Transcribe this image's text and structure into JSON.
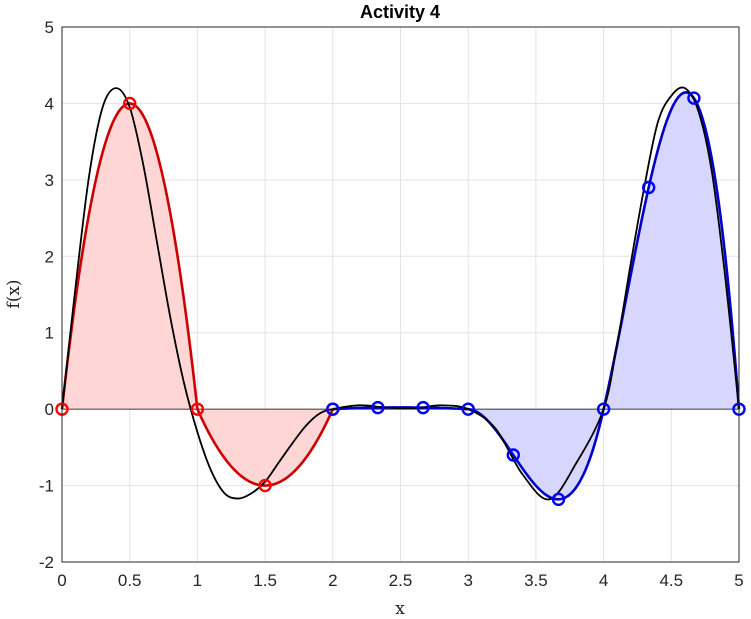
{
  "chart_data": {
    "type": "line",
    "title": "Activity 4",
    "xlabel": "x",
    "ylabel": "f(x)",
    "xlim": [
      0,
      5
    ],
    "ylim": [
      -2,
      5
    ],
    "xticks": [
      0,
      0.5,
      1,
      1.5,
      2,
      2.5,
      3,
      3.5,
      4,
      4.5,
      5
    ],
    "xtick_labels": [
      "0",
      "0.5",
      "1",
      "1.5",
      "2",
      "2.5",
      "3",
      "3.5",
      "4",
      "4.5",
      "5"
    ],
    "yticks": [
      -2,
      -1,
      0,
      1,
      2,
      3,
      4,
      5
    ],
    "ytick_labels": [
      "-2",
      "-1",
      "0",
      "1",
      "2",
      "3",
      "4",
      "5"
    ],
    "grid": true,
    "legend": "none",
    "true_function": {
      "color": "#000000",
      "x": [
        0,
        0.1,
        0.2,
        0.3,
        0.4,
        0.5,
        0.6,
        0.7,
        0.8,
        0.9,
        1.0,
        1.1,
        1.2,
        1.3,
        1.4,
        1.5,
        1.6,
        1.7,
        1.8,
        1.9,
        2.0,
        2.2,
        2.4,
        2.6,
        2.8,
        3.0,
        3.2,
        3.4,
        3.6,
        3.8,
        4.0,
        4.1,
        4.2,
        4.3,
        4.4,
        4.5,
        4.6,
        4.7,
        4.8,
        4.9,
        5.0
      ],
      "y": [
        0,
        1.6,
        3.05,
        3.95,
        4.2,
        3.95,
        3.2,
        2.2,
        1.2,
        0.35,
        -0.3,
        -0.8,
        -1.1,
        -1.17,
        -1.1,
        -0.95,
        -0.7,
        -0.45,
        -0.22,
        -0.06,
        0.0,
        0.05,
        0.02,
        0.01,
        0.05,
        0.0,
        -0.25,
        -0.85,
        -1.18,
        -0.7,
        0.0,
        0.85,
        1.9,
        2.9,
        3.75,
        4.1,
        4.2,
        3.9,
        3.1,
        1.7,
        0.0
      ]
    },
    "segments": [
      {
        "color": "#cc0000",
        "fill": "#ffd6d6",
        "degree": 2,
        "interval": [
          0,
          2
        ],
        "points": [
          [
            0,
            0
          ],
          [
            0.5,
            4
          ],
          [
            1,
            0
          ],
          [
            1.5,
            -1
          ],
          [
            2,
            0
          ]
        ]
      },
      {
        "color": "#0000cc",
        "fill": "#d6d6ff",
        "degree": 3,
        "interval": [
          2,
          5
        ],
        "points": [
          [
            2,
            0
          ],
          [
            2.333,
            0.02
          ],
          [
            2.667,
            0.02
          ],
          [
            3,
            0
          ],
          [
            3.333,
            -0.6
          ],
          [
            3.667,
            -1.18
          ],
          [
            4,
            0
          ],
          [
            4.333,
            2.9
          ],
          [
            4.667,
            4.07
          ],
          [
            5,
            0
          ]
        ]
      }
    ]
  }
}
